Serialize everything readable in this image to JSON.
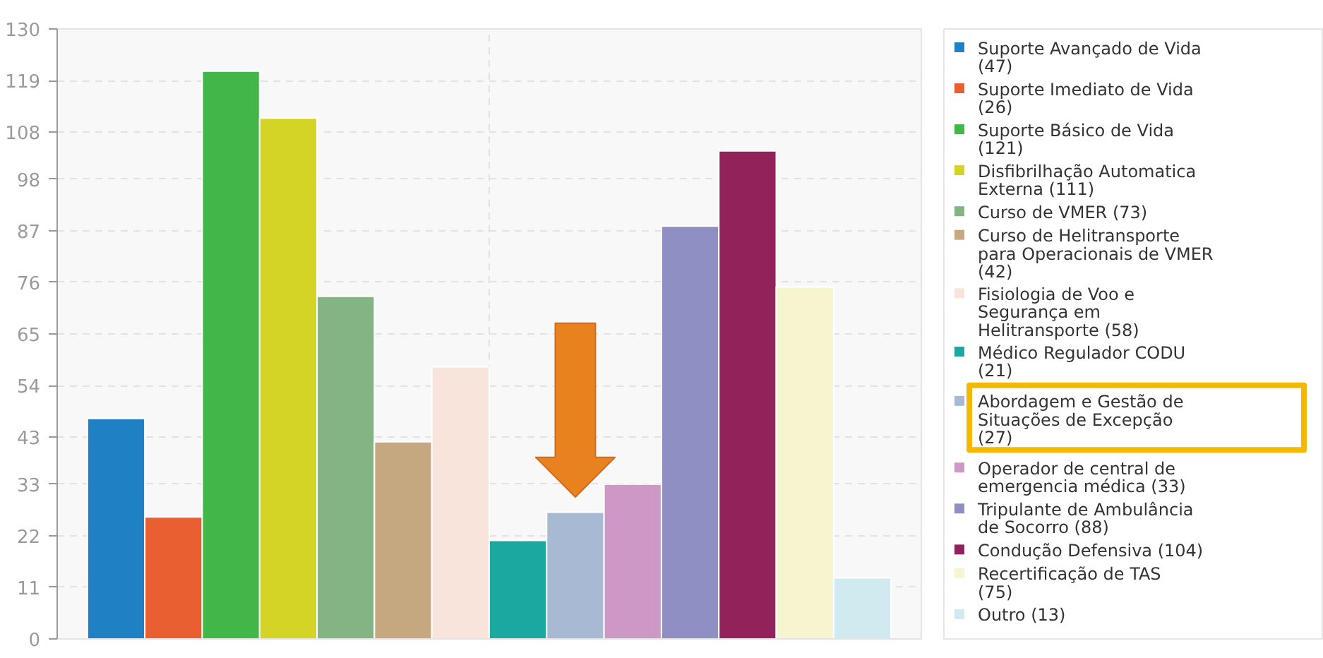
{
  "chart_data": {
    "type": "bar",
    "categories": [
      null
    ],
    "series": [
      {
        "name": "Suporte Avançado de Vida (47)",
        "color": "#2080c4",
        "values": [
          47
        ]
      },
      {
        "name": "Suporte Imediato de Vida (26)",
        "color": "#e95f31",
        "values": [
          26
        ]
      },
      {
        "name": "Suporte Básico de Vida (121)",
        "color": "#42b649",
        "values": [
          121
        ]
      },
      {
        "name": "Disfibrilhação Automatica Externa (111)",
        "color": "#d4d426",
        "values": [
          111
        ]
      },
      {
        "name": "Curso de VMER (73)",
        "color": "#84b384",
        "values": [
          73
        ]
      },
      {
        "name": "Curso de Helitransporte para Operacionais de VMER (42)",
        "color": "#c5a880",
        "values": [
          42
        ]
      },
      {
        "name": "Fisiologia de Voo e Segurança em Helitransporte (58)",
        "color": "#f9e4dc",
        "values": [
          58
        ]
      },
      {
        "name": "Médico Regulador CODU (21)",
        "color": "#1aa8a0",
        "values": [
          21
        ]
      },
      {
        "name": "Abordagem e Gestão de Situações de Excepção (27)",
        "color": "#a8bad3",
        "values": [
          27
        ]
      },
      {
        "name": "Operador de central de emergencia médica (33)",
        "color": "#cd97c6",
        "values": [
          33
        ]
      },
      {
        "name": "Tripulante de Ambulância de Socorro (88)",
        "color": "#8f8fc4",
        "values": [
          88
        ]
      },
      {
        "name": "Condução Defensiva (104)",
        "color": "#92235a",
        "values": [
          104
        ]
      },
      {
        "name": "Recertificação de TAS (75)",
        "color": "#f7f5d0",
        "values": [
          75
        ]
      },
      {
        "name": "Outro (13)",
        "color": "#d0eaf0",
        "values": [
          13
        ]
      }
    ],
    "ylim": [
      0,
      130
    ],
    "yticks": [
      0,
      11,
      22,
      33,
      43,
      54,
      65,
      76,
      87,
      98,
      108,
      119,
      130
    ],
    "grid": true,
    "legend": "right",
    "tick_labels": "y"
  }
}
